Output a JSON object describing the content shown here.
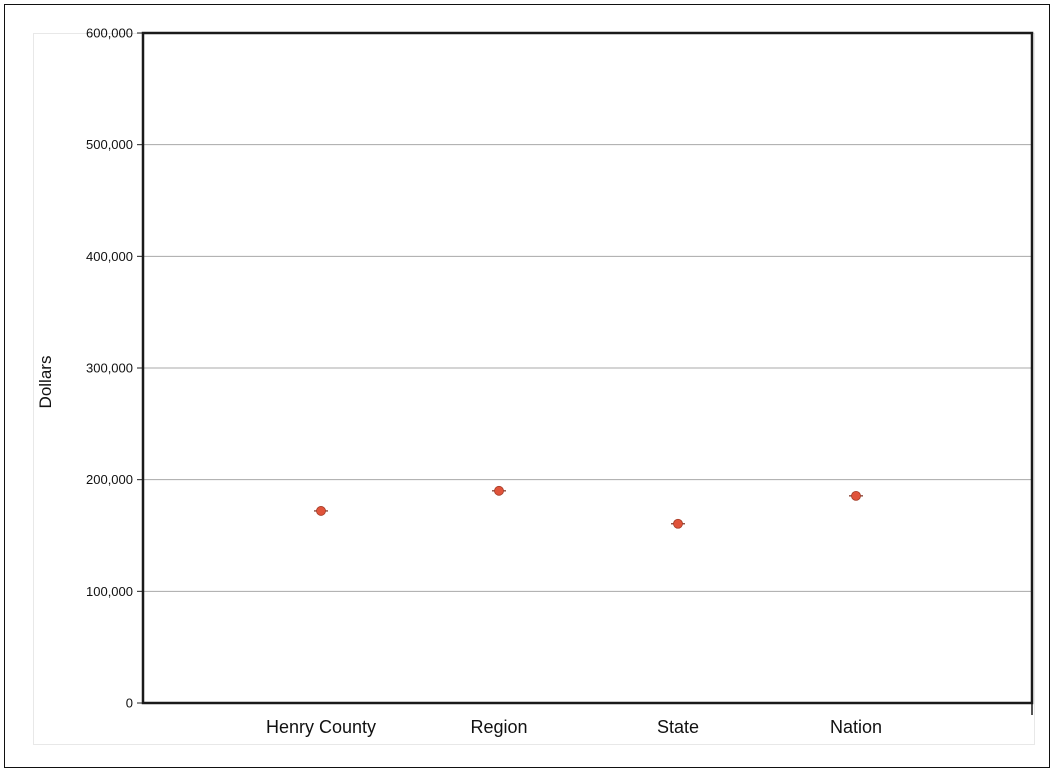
{
  "chart_data": {
    "type": "scatter",
    "title": "",
    "xlabel": "",
    "ylabel": "Dollars",
    "categories": [
      "Henry County",
      "Region",
      "State",
      "Nation"
    ],
    "series": [
      {
        "values": [
          172000,
          190000,
          160500,
          185500
        ],
        "color": "#e0533a"
      }
    ],
    "ylim": [
      0,
      600000
    ],
    "yticks": [
      0,
      100000,
      200000,
      300000,
      400000,
      500000,
      600000
    ],
    "ytick_labels": [
      "0",
      "100,000",
      "200,000",
      "300,000",
      "400,000",
      "500,000",
      "600,000"
    ],
    "grid": true,
    "legend": "none"
  }
}
